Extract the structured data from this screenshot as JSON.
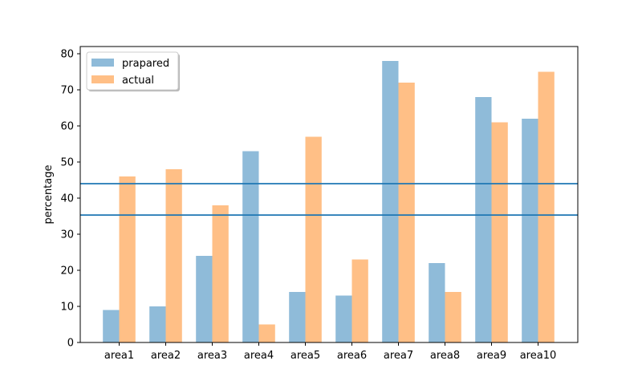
{
  "chart_data": {
    "type": "bar",
    "categories": [
      "area1",
      "area2",
      "area3",
      "area4",
      "area5",
      "area6",
      "area7",
      "area8",
      "area9",
      "area10"
    ],
    "series": [
      {
        "name": "prapared",
        "values": [
          9,
          10,
          24,
          53,
          14,
          13,
          78,
          22,
          68,
          62
        ],
        "color": "#1f77b4",
        "opacity": 0.5
      },
      {
        "name": "actual",
        "values": [
          46,
          48,
          38,
          5,
          57,
          23,
          72,
          14,
          61,
          75
        ],
        "color": "#ff7f0e",
        "opacity": 0.5
      }
    ],
    "reference_lines": [
      {
        "y": 44,
        "color": "#1f77b4"
      },
      {
        "y": 35.3,
        "color": "#1f77b4"
      }
    ],
    "title": "",
    "xlabel": "",
    "ylabel": "percentage",
    "ylim": [
      0,
      82
    ],
    "yticks": [
      0,
      10,
      20,
      30,
      40,
      50,
      60,
      70,
      80
    ],
    "grid": false,
    "legend_position": "top-left"
  }
}
